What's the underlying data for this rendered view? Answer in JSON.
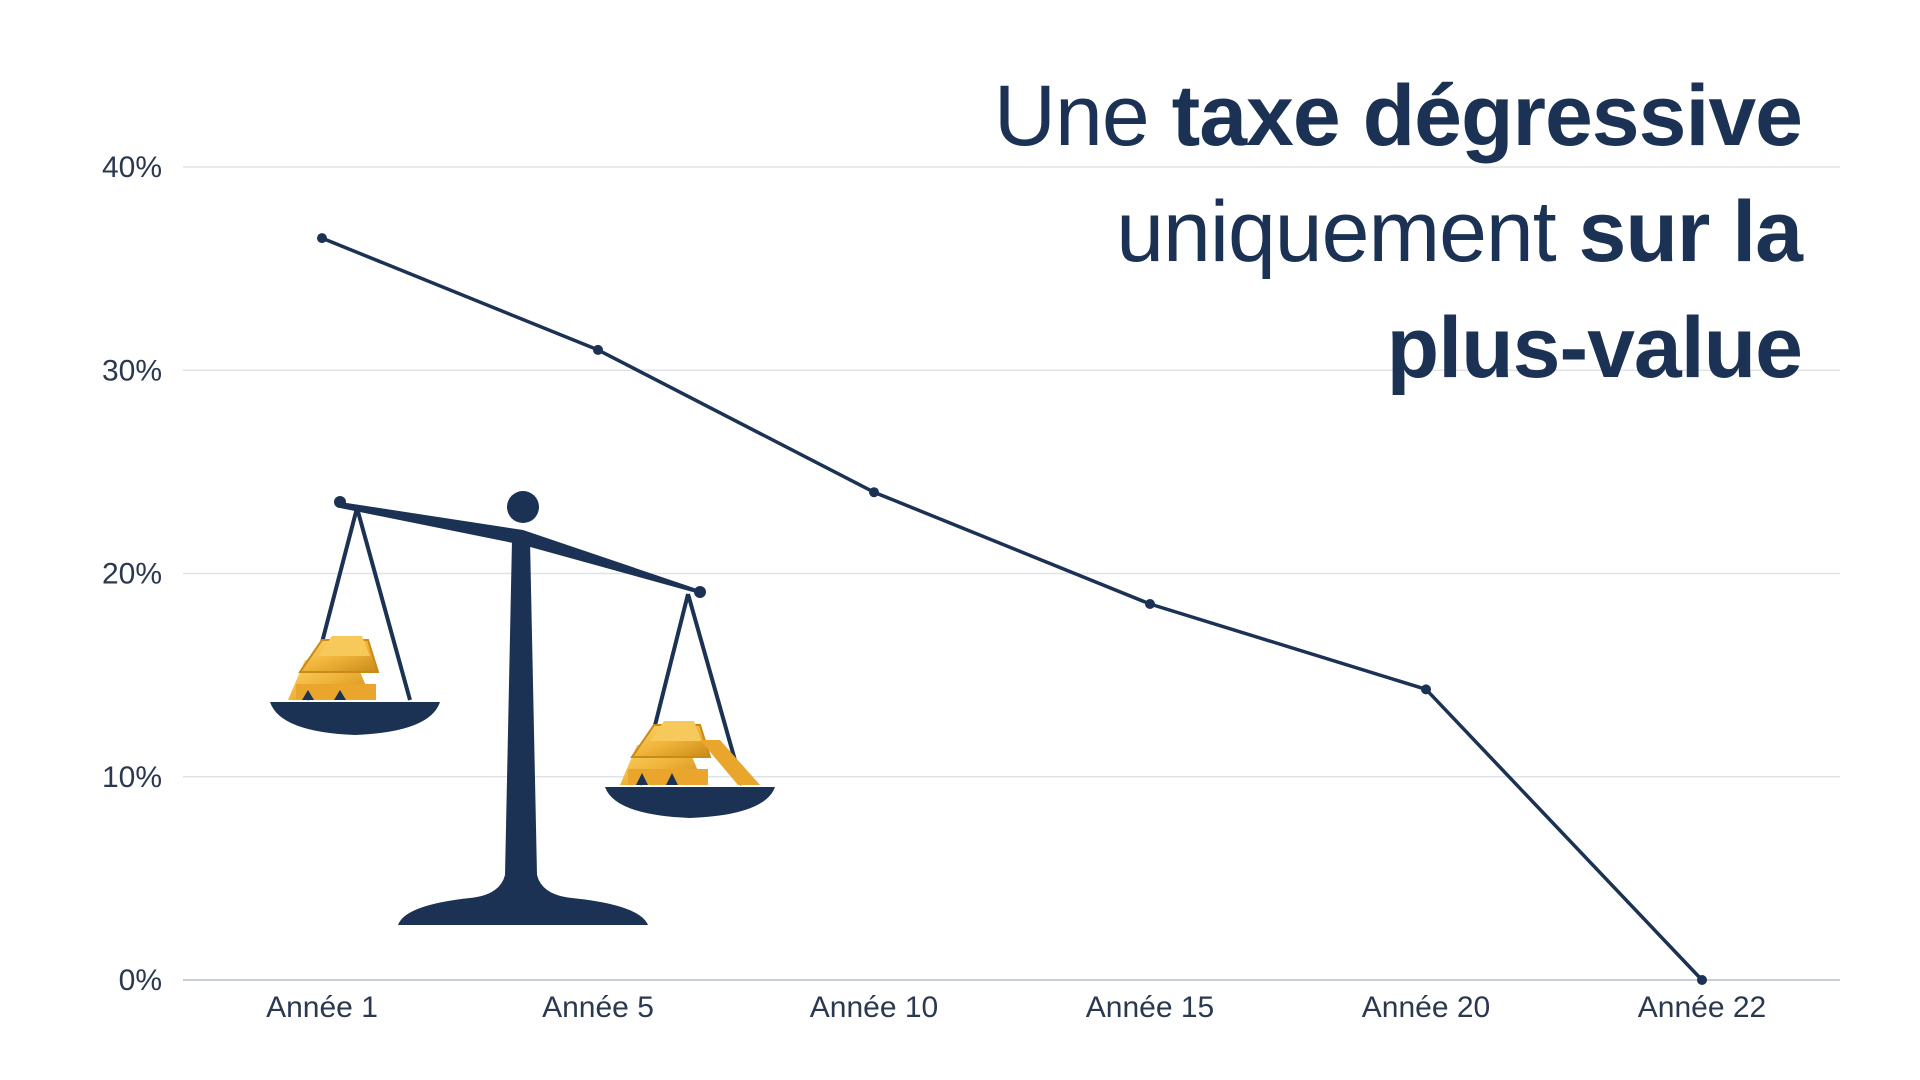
{
  "title": {
    "line1_regular": "Une ",
    "line1_bold": "taxe dégressive",
    "line2_regular": "uniquement ",
    "line2_bold": "sur la",
    "line3_bold": "plus-value"
  },
  "colors": {
    "line": "#1b3254",
    "grid": "#dfe3e8",
    "text": "#2a3850",
    "gold": "#f0b43a",
    "gold_dark": "#c98a18"
  },
  "illustration": {
    "icon": "balance-scale-with-gold-bars-icon"
  },
  "chart_data": {
    "type": "line",
    "categories": [
      "Année 1",
      "Année 5",
      "Année 10",
      "Année 15",
      "Année 20",
      "Année 22"
    ],
    "values": [
      36.5,
      31,
      24,
      18.5,
      14.3,
      0
    ],
    "y_ticks": [
      "0%",
      "10%",
      "20%",
      "30%",
      "40%"
    ],
    "ylim": [
      0,
      40
    ],
    "grid": true,
    "legend": "none"
  }
}
